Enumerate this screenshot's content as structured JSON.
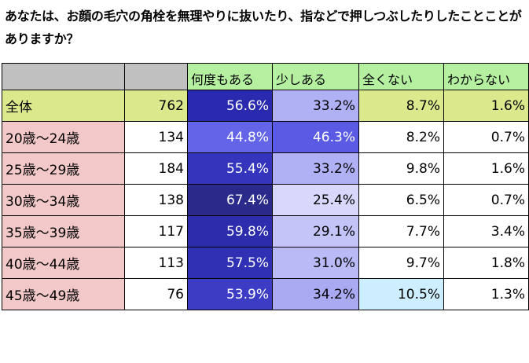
{
  "title": "あなたは、お顔の毛穴の角栓を無理やりに抜いたり、指などで押しつぶしたりしたことことがありますか？",
  "colors": {
    "header_blank": "#c0c0c0",
    "header_q1": "#b4f0a0",
    "total_row": "#dbe88c",
    "age_label": "#f2c8c8",
    "col1_dark": "#2e2eb8",
    "col2_light": "#b8b8f8",
    "col3_highlight": "#cceeff",
    "cell_white": "#ffffff"
  },
  "chart_data": {
    "type": "table",
    "title": "あなたは、お顔の毛穴の角栓を無理やりに抜いたり、指などで押しつぶしたりしたことことがありますか？",
    "columns": [
      "",
      "",
      "何度もある",
      "少しある",
      "全くない",
      "わからない"
    ],
    "rows": [
      {
        "label": "全体",
        "n": "762",
        "values": [
          "56.6%",
          "33.2%",
          "8.7%",
          "1.6%"
        ],
        "bg": [
          "#dbe88c",
          "#dbe88c",
          "#2a2ab0",
          "#b0b0f4",
          "#dbe88c",
          "#dbe88c"
        ]
      },
      {
        "label": "20歳～24歳",
        "n": "134",
        "values": [
          "44.8%",
          "46.3%",
          "8.2%",
          "0.7%"
        ],
        "bg": [
          "#f2c8c8",
          "#ffffff",
          "#6464e8",
          "#5a5ae4",
          "#ffffff",
          "#ffffff"
        ]
      },
      {
        "label": "25歳～29歳",
        "n": "184",
        "values": [
          "55.4%",
          "33.2%",
          "9.8%",
          "1.6%"
        ],
        "bg": [
          "#f2c8c8",
          "#ffffff",
          "#3434bc",
          "#b0b0f4",
          "#ffffff",
          "#ffffff"
        ]
      },
      {
        "label": "30歳～34歳",
        "n": "138",
        "values": [
          "67.4%",
          "25.4%",
          "6.5%",
          "0.7%"
        ],
        "bg": [
          "#f2c8c8",
          "#ffffff",
          "#2a2a8a",
          "#d8d8fc",
          "#ffffff",
          "#ffffff"
        ]
      },
      {
        "label": "35歳～39歳",
        "n": "117",
        "values": [
          "59.8%",
          "29.1%",
          "7.7%",
          "3.4%"
        ],
        "bg": [
          "#f2c8c8",
          "#ffffff",
          "#2c2cac",
          "#c4c4f8",
          "#ffffff",
          "#ffffff"
        ]
      },
      {
        "label": "40歳～44歳",
        "n": "113",
        "values": [
          "57.5%",
          "31.0%",
          "9.7%",
          "1.8%"
        ],
        "bg": [
          "#f2c8c8",
          "#ffffff",
          "#3030b4",
          "#babaf6",
          "#ffffff",
          "#ffffff"
        ]
      },
      {
        "label": "45歳～49歳",
        "n": "76",
        "values": [
          "53.9%",
          "34.2%",
          "10.5%",
          "1.3%"
        ],
        "bg": [
          "#f2c8c8",
          "#ffffff",
          "#3c3cc4",
          "#aaaaf2",
          "#cceeff",
          "#ffffff"
        ]
      }
    ]
  }
}
